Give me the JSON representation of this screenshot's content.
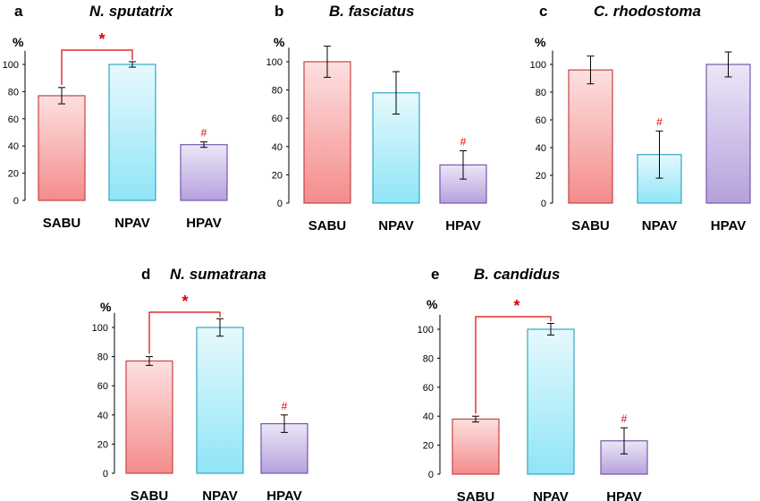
{
  "colors": {
    "significance": "#e00000",
    "axis": "#000000"
  },
  "chart_data": [
    {
      "type": "bar",
      "panel": "a",
      "title": "N. sputatrix",
      "ylabel": "%",
      "ylim": [
        0,
        110
      ],
      "yticks": [
        0,
        20,
        40,
        60,
        80,
        100
      ],
      "categories": [
        "SABU",
        "NPAV",
        "HPAV"
      ],
      "values": [
        77,
        100,
        41
      ],
      "errors": [
        6,
        2,
        2
      ],
      "colors": [
        {
          "top": "#fde0e0",
          "bottom": "#f48c8c",
          "stroke": "#c74444"
        },
        {
          "top": "#e6f9fd",
          "bottom": "#8fe5f7",
          "stroke": "#33a7c2"
        },
        {
          "top": "#ece6f7",
          "bottom": "#b5a1dd",
          "stroke": "#7658ab"
        }
      ],
      "star": {
        "marker": "*",
        "from": 0,
        "to": 1
      },
      "hash": {
        "marker": "#",
        "bar": 2
      }
    },
    {
      "type": "bar",
      "panel": "b",
      "title": "B. fasciatus",
      "ylabel": "%",
      "ylim": [
        0,
        110
      ],
      "yticks": [
        0,
        20,
        40,
        60,
        80,
        100
      ],
      "categories": [
        "SABU",
        "NPAV",
        "HPAV"
      ],
      "values": [
        100,
        78,
        27
      ],
      "errors": [
        11,
        15,
        10
      ],
      "colors": [
        {
          "top": "#fde0e0",
          "bottom": "#f48c8c",
          "stroke": "#c74444"
        },
        {
          "top": "#e6f9fd",
          "bottom": "#8fe5f7",
          "stroke": "#33a7c2"
        },
        {
          "top": "#ece6f7",
          "bottom": "#b5a1dd",
          "stroke": "#7658ab"
        }
      ],
      "hash": {
        "marker": "#",
        "bar": 2
      }
    },
    {
      "type": "bar",
      "panel": "c",
      "title": "C. rhodostoma",
      "ylabel": "%",
      "ylim": [
        0,
        110
      ],
      "yticks": [
        0,
        20,
        40,
        60,
        80,
        100
      ],
      "categories": [
        "SABU",
        "NPAV",
        "HPAV"
      ],
      "values": [
        96,
        35,
        100
      ],
      "errors": [
        10,
        17,
        9
      ],
      "colors": [
        {
          "top": "#fde0e0",
          "bottom": "#f48c8c",
          "stroke": "#c74444"
        },
        {
          "top": "#e6f9fd",
          "bottom": "#8fe5f7",
          "stroke": "#33a7c2"
        },
        {
          "top": "#ece6f7",
          "bottom": "#b5a1dd",
          "stroke": "#7658ab"
        }
      ],
      "hash": {
        "marker": "#",
        "bar": 1
      }
    },
    {
      "type": "bar",
      "panel": "d",
      "title": "N. sumatrana",
      "ylabel": "%",
      "ylim": [
        0,
        110
      ],
      "yticks": [
        0,
        20,
        40,
        60,
        80,
        100
      ],
      "categories": [
        "SABU",
        "NPAV",
        "HPAV"
      ],
      "values": [
        77,
        100,
        34
      ],
      "errors": [
        3,
        6,
        6
      ],
      "colors": [
        {
          "top": "#fde0e0",
          "bottom": "#f48c8c",
          "stroke": "#c74444"
        },
        {
          "top": "#e6f9fd",
          "bottom": "#8fe5f7",
          "stroke": "#33a7c2"
        },
        {
          "top": "#ece6f7",
          "bottom": "#b5a1dd",
          "stroke": "#7658ab"
        }
      ],
      "star": {
        "marker": "*",
        "from": 0,
        "to": 1
      },
      "hash": {
        "marker": "#",
        "bar": 2
      }
    },
    {
      "type": "bar",
      "panel": "e",
      "title": "B. candidus",
      "ylabel": "%",
      "ylim": [
        0,
        110
      ],
      "yticks": [
        0,
        20,
        40,
        60,
        80,
        100
      ],
      "categories": [
        "SABU",
        "NPAV",
        "HPAV"
      ],
      "values": [
        38,
        100,
        23
      ],
      "errors": [
        2,
        4,
        9
      ],
      "colors": [
        {
          "top": "#fde0e0",
          "bottom": "#f48c8c",
          "stroke": "#c74444"
        },
        {
          "top": "#e6f9fd",
          "bottom": "#8fe5f7",
          "stroke": "#33a7c2"
        },
        {
          "top": "#ece6f7",
          "bottom": "#b5a1dd",
          "stroke": "#7658ab"
        }
      ],
      "star": {
        "marker": "*",
        "from": 0,
        "to": 1
      },
      "hash": {
        "marker": "#",
        "bar": 2
      }
    }
  ]
}
